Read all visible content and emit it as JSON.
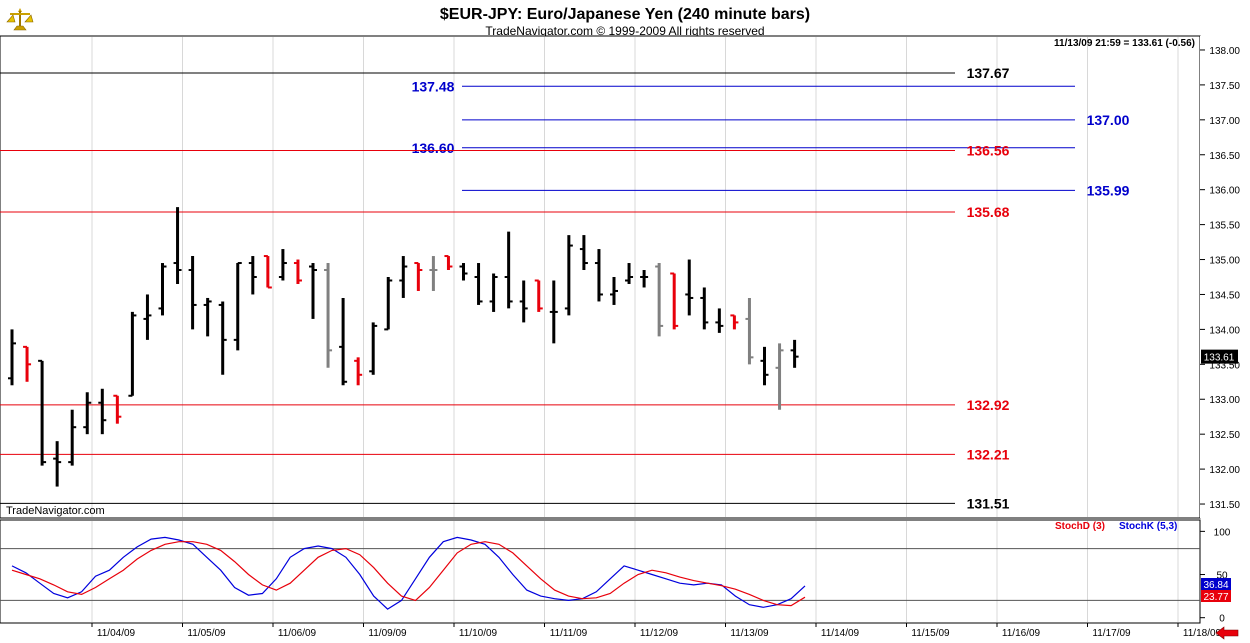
{
  "header": {
    "title": "$EUR-JPY:  Euro/Japanese Yen  (240 minute bars)",
    "subtitle": "TradeNavigator.com © 1999-2009 All rights reserved",
    "last_info": "11/13/09 21:59 = 133.61 (-0.56)",
    "watermark": "TradeNavigator.com",
    "logo_icon": "balance-scale-icon",
    "scroll_icon": "red-left-arrow-icon"
  },
  "colors": {
    "up_bar": "#000000",
    "down_bar": "#e8000b",
    "neutral_bar": "#808080",
    "red_line": "#e8000b",
    "blue_line": "#0000cc",
    "black_line": "#000000",
    "grid": "#d8d8d8",
    "stochK": "#0000dd",
    "stochD": "#e8000b"
  },
  "chart_data": [
    {
      "type": "ohlc",
      "ylim": [
        131.3,
        138.2
      ],
      "y_ticks": [
        "138.00",
        "137.50",
        "137.00",
        "136.50",
        "136.00",
        "135.50",
        "135.00",
        "134.50",
        "134.00",
        "133.50",
        "133.00",
        "132.50",
        "132.00",
        "131.50"
      ],
      "x_ticks": [
        "11/04/09",
        "11/05/09",
        "11/06/09",
        "11/09/09",
        "11/10/09",
        "11/11/09",
        "11/12/09",
        "11/13/09",
        "11/14/09",
        "11/15/09",
        "11/16/09",
        "11/17/09",
        "11/18/09"
      ],
      "last_price": "133.61",
      "levels": [
        {
          "value": 137.67,
          "label": "137.67",
          "color": "black",
          "side": "left"
        },
        {
          "value": 137.48,
          "label": "137.48",
          "color": "blue",
          "side": "mid"
        },
        {
          "value": 137.0,
          "label": "137.00",
          "color": "blue",
          "side": "right"
        },
        {
          "value": 136.6,
          "label": "136.60",
          "color": "blue",
          "side": "mid"
        },
        {
          "value": 136.56,
          "label": "136.56",
          "color": "red",
          "side": "left"
        },
        {
          "value": 135.99,
          "label": "135.99",
          "color": "blue",
          "side": "right"
        },
        {
          "value": 135.68,
          "label": "135.68",
          "color": "red",
          "side": "left"
        },
        {
          "value": 132.92,
          "label": "132.92",
          "color": "red",
          "side": "left"
        },
        {
          "value": 132.21,
          "label": "132.21",
          "color": "red",
          "side": "left"
        },
        {
          "value": 131.51,
          "label": "131.51",
          "color": "black",
          "side": "left"
        }
      ],
      "bars": [
        {
          "o": 133.3,
          "h": 134.0,
          "l": 133.2,
          "c": 133.8,
          "d": "up"
        },
        {
          "o": 133.75,
          "h": 133.75,
          "l": 133.25,
          "c": 133.5,
          "d": "down"
        },
        {
          "o": 133.55,
          "h": 133.55,
          "l": 132.05,
          "c": 132.1,
          "d": "up"
        },
        {
          "o": 132.15,
          "h": 132.4,
          "l": 131.75,
          "c": 132.1,
          "d": "up"
        },
        {
          "o": 132.1,
          "h": 132.85,
          "l": 132.05,
          "c": 132.6,
          "d": "up"
        },
        {
          "o": 132.6,
          "h": 133.1,
          "l": 132.5,
          "c": 132.95,
          "d": "up"
        },
        {
          "o": 132.95,
          "h": 133.15,
          "l": 132.5,
          "c": 132.7,
          "d": "up"
        },
        {
          "o": 133.05,
          "h": 133.05,
          "l": 132.65,
          "c": 132.75,
          "d": "down"
        },
        {
          "o": 133.05,
          "h": 134.25,
          "l": 133.05,
          "c": 134.2,
          "d": "up"
        },
        {
          "o": 134.15,
          "h": 134.5,
          "l": 133.85,
          "c": 134.2,
          "d": "up"
        },
        {
          "o": 134.3,
          "h": 134.95,
          "l": 134.2,
          "c": 134.9,
          "d": "up"
        },
        {
          "o": 134.95,
          "h": 135.75,
          "l": 134.65,
          "c": 134.85,
          "d": "up"
        },
        {
          "o": 134.85,
          "h": 135.05,
          "l": 134.0,
          "c": 134.35,
          "d": "up"
        },
        {
          "o": 134.35,
          "h": 134.45,
          "l": 133.9,
          "c": 134.4,
          "d": "up"
        },
        {
          "o": 134.35,
          "h": 134.4,
          "l": 133.35,
          "c": 133.85,
          "d": "up"
        },
        {
          "o": 133.85,
          "h": 134.95,
          "l": 133.7,
          "c": 134.95,
          "d": "up"
        },
        {
          "o": 134.95,
          "h": 135.05,
          "l": 134.5,
          "c": 134.75,
          "d": "up"
        },
        {
          "o": 135.05,
          "h": 135.05,
          "l": 134.6,
          "c": 134.6,
          "d": "down"
        },
        {
          "o": 134.75,
          "h": 135.15,
          "l": 134.7,
          "c": 134.95,
          "d": "up"
        },
        {
          "o": 134.95,
          "h": 135.0,
          "l": 134.65,
          "c": 134.7,
          "d": "down"
        },
        {
          "o": 134.9,
          "h": 134.95,
          "l": 134.15,
          "c": 134.85,
          "d": "up"
        },
        {
          "o": 134.85,
          "h": 134.95,
          "l": 133.45,
          "c": 133.7,
          "d": "neutral"
        },
        {
          "o": 133.75,
          "h": 134.45,
          "l": 133.2,
          "c": 133.25,
          "d": "up"
        },
        {
          "o": 133.55,
          "h": 133.6,
          "l": 133.2,
          "c": 133.35,
          "d": "down"
        },
        {
          "o": 133.4,
          "h": 134.1,
          "l": 133.35,
          "c": 134.05,
          "d": "up"
        },
        {
          "o": 134.0,
          "h": 134.75,
          "l": 134.0,
          "c": 134.7,
          "d": "up"
        },
        {
          "o": 134.7,
          "h": 135.05,
          "l": 134.45,
          "c": 134.9,
          "d": "up"
        },
        {
          "o": 134.95,
          "h": 134.95,
          "l": 134.55,
          "c": 134.85,
          "d": "down"
        },
        {
          "o": 134.85,
          "h": 135.05,
          "l": 134.55,
          "c": 134.85,
          "d": "neutral"
        },
        {
          "o": 135.05,
          "h": 135.05,
          "l": 134.85,
          "c": 134.9,
          "d": "down"
        },
        {
          "o": 134.9,
          "h": 134.95,
          "l": 134.7,
          "c": 134.8,
          "d": "up"
        },
        {
          "o": 134.75,
          "h": 134.95,
          "l": 134.35,
          "c": 134.4,
          "d": "up"
        },
        {
          "o": 134.4,
          "h": 134.8,
          "l": 134.25,
          "c": 134.75,
          "d": "up"
        },
        {
          "o": 134.75,
          "h": 135.4,
          "l": 134.3,
          "c": 134.4,
          "d": "up"
        },
        {
          "o": 134.4,
          "h": 134.7,
          "l": 134.1,
          "c": 134.3,
          "d": "up"
        },
        {
          "o": 134.7,
          "h": 134.7,
          "l": 134.25,
          "c": 134.3,
          "d": "down"
        },
        {
          "o": 134.25,
          "h": 134.7,
          "l": 133.8,
          "c": 134.25,
          "d": "up"
        },
        {
          "o": 134.3,
          "h": 135.35,
          "l": 134.2,
          "c": 135.2,
          "d": "up"
        },
        {
          "o": 135.15,
          "h": 135.35,
          "l": 134.85,
          "c": 134.95,
          "d": "up"
        },
        {
          "o": 134.95,
          "h": 135.15,
          "l": 134.4,
          "c": 134.5,
          "d": "up"
        },
        {
          "o": 134.5,
          "h": 134.75,
          "l": 134.35,
          "c": 134.55,
          "d": "up"
        },
        {
          "o": 134.7,
          "h": 134.95,
          "l": 134.65,
          "c": 134.75,
          "d": "up"
        },
        {
          "o": 134.75,
          "h": 134.85,
          "l": 134.6,
          "c": 134.75,
          "d": "up"
        },
        {
          "o": 134.9,
          "h": 134.95,
          "l": 133.9,
          "c": 134.05,
          "d": "neutral"
        },
        {
          "o": 134.8,
          "h": 134.8,
          "l": 134.0,
          "c": 134.05,
          "d": "down"
        },
        {
          "o": 134.5,
          "h": 135.0,
          "l": 134.2,
          "c": 134.45,
          "d": "up"
        },
        {
          "o": 134.45,
          "h": 134.6,
          "l": 134.0,
          "c": 134.1,
          "d": "up"
        },
        {
          "o": 134.1,
          "h": 134.3,
          "l": 133.95,
          "c": 134.05,
          "d": "up"
        },
        {
          "o": 134.2,
          "h": 134.2,
          "l": 134.0,
          "c": 134.1,
          "d": "down"
        },
        {
          "o": 134.15,
          "h": 134.45,
          "l": 133.5,
          "c": 133.6,
          "d": "neutral"
        },
        {
          "o": 133.55,
          "h": 133.75,
          "l": 133.2,
          "c": 133.35,
          "d": "up"
        },
        {
          "o": 133.45,
          "h": 133.8,
          "l": 132.85,
          "c": 133.7,
          "d": "neutral"
        },
        {
          "o": 133.7,
          "h": 133.85,
          "l": 133.45,
          "c": 133.61,
          "d": "up"
        }
      ]
    },
    {
      "type": "line",
      "ylim": [
        -5,
        112
      ],
      "y_ticks": [
        "100",
        "50",
        "0"
      ],
      "hlines": [
        80,
        20
      ],
      "series": [
        {
          "name": "StochK (5,3)",
          "color": "blue",
          "last": "36.84",
          "values": [
            60,
            52,
            40,
            28,
            23,
            30,
            48,
            55,
            70,
            82,
            91,
            93,
            90,
            85,
            70,
            55,
            35,
            26,
            28,
            45,
            70,
            80,
            83,
            80,
            70,
            50,
            25,
            10,
            20,
            45,
            70,
            88,
            93,
            90,
            85,
            70,
            50,
            32,
            25,
            22,
            20,
            22,
            30,
            45,
            60,
            55,
            50,
            45,
            40,
            38,
            40,
            38,
            25,
            15,
            12,
            15,
            22,
            36.84
          ]
        },
        {
          "name": "StochD (3)",
          "color": "red",
          "last": "23.77",
          "values": [
            55,
            50,
            45,
            38,
            30,
            27,
            35,
            45,
            55,
            68,
            78,
            85,
            88,
            88,
            85,
            78,
            65,
            50,
            38,
            32,
            40,
            55,
            70,
            78,
            80,
            73,
            58,
            40,
            25,
            20,
            35,
            55,
            75,
            85,
            88,
            85,
            75,
            60,
            45,
            32,
            25,
            22,
            23,
            28,
            40,
            50,
            55,
            52,
            47,
            43,
            40,
            37,
            33,
            27,
            20,
            15,
            14,
            23.77
          ]
        }
      ]
    }
  ]
}
